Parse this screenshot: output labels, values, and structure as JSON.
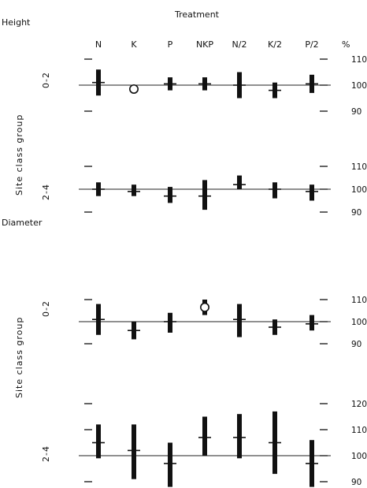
{
  "header": {
    "treatment_label": "Treatment",
    "percent_label": "%"
  },
  "treatments": [
    "N",
    "K",
    "P",
    "NKP",
    "N/2",
    "K/2",
    "P/2"
  ],
  "site_class_label": "Site class group",
  "chart_data": [
    {
      "type": "range-bar",
      "section": "Height",
      "site_class": "0-2",
      "ylim": [
        90,
        110
      ],
      "yticks": [
        "110",
        "100",
        "90"
      ],
      "series": [
        {
          "treatment": "N",
          "low": 96,
          "high": 106,
          "mean": 101,
          "marker": "bar"
        },
        {
          "treatment": "K",
          "low": 98,
          "high": 99,
          "mean": 98.5,
          "marker": "circle"
        },
        {
          "treatment": "P",
          "low": 98,
          "high": 103,
          "mean": 100.5,
          "marker": "bar"
        },
        {
          "treatment": "NKP",
          "low": 98,
          "high": 103,
          "mean": 100.5,
          "marker": "bar"
        },
        {
          "treatment": "N/2",
          "low": 95,
          "high": 105,
          "mean": 100,
          "marker": "bar"
        },
        {
          "treatment": "K/2",
          "low": 95,
          "high": 101,
          "mean": 98,
          "marker": "bar"
        },
        {
          "treatment": "P/2",
          "low": 97,
          "high": 104,
          "mean": 100.5,
          "marker": "bar"
        }
      ]
    },
    {
      "type": "range-bar",
      "section": "Height",
      "site_class": "2-4",
      "ylim": [
        90,
        110
      ],
      "yticks": [
        "110",
        "100",
        "90"
      ],
      "series": [
        {
          "treatment": "N",
          "low": 97,
          "high": 103,
          "mean": 100,
          "marker": "bar"
        },
        {
          "treatment": "K",
          "low": 97,
          "high": 102,
          "mean": 99,
          "marker": "bar"
        },
        {
          "treatment": "P",
          "low": 94,
          "high": 101,
          "mean": 97,
          "marker": "bar"
        },
        {
          "treatment": "NKP",
          "low": 91,
          "high": 104,
          "mean": 97,
          "marker": "bar"
        },
        {
          "treatment": "N/2",
          "low": 100,
          "high": 106,
          "mean": 102,
          "marker": "bar"
        },
        {
          "treatment": "K/2",
          "low": 96,
          "high": 103,
          "mean": 100,
          "marker": "bar"
        },
        {
          "treatment": "P/2",
          "low": 95,
          "high": 102,
          "mean": 99,
          "marker": "bar"
        }
      ]
    },
    {
      "type": "range-bar",
      "section": "Diameter",
      "site_class": "0-2",
      "ylim": [
        90,
        110
      ],
      "yticks": [
        "110",
        "100",
        "90"
      ],
      "series": [
        {
          "treatment": "N",
          "low": 94,
          "high": 108,
          "mean": 101,
          "marker": "bar"
        },
        {
          "treatment": "K",
          "low": 92,
          "high": 100,
          "mean": 96,
          "marker": "bar"
        },
        {
          "treatment": "P",
          "low": 95,
          "high": 104,
          "mean": 100,
          "marker": "bar"
        },
        {
          "treatment": "NKP",
          "low": 103,
          "high": 110,
          "mean": 106.5,
          "marker": "circle"
        },
        {
          "treatment": "N/2",
          "low": 93,
          "high": 108,
          "mean": 101,
          "marker": "bar"
        },
        {
          "treatment": "K/2",
          "low": 94,
          "high": 101,
          "mean": 97.5,
          "marker": "bar"
        },
        {
          "treatment": "P/2",
          "low": 96,
          "high": 103,
          "mean": 99,
          "marker": "bar"
        }
      ]
    },
    {
      "type": "range-bar",
      "section": "Diameter",
      "site_class": "2-4",
      "ylim": [
        90,
        120
      ],
      "yticks": [
        "120",
        "110",
        "100",
        "90"
      ],
      "series": [
        {
          "treatment": "N",
          "low": 99,
          "high": 112,
          "mean": 105,
          "marker": "bar"
        },
        {
          "treatment": "K",
          "low": 91,
          "high": 112,
          "mean": 102,
          "marker": "bar"
        },
        {
          "treatment": "P",
          "low": 88,
          "high": 105,
          "mean": 97,
          "marker": "bar"
        },
        {
          "treatment": "NKP",
          "low": 100,
          "high": 115,
          "mean": 107,
          "marker": "bar"
        },
        {
          "treatment": "N/2",
          "low": 99,
          "high": 116,
          "mean": 107,
          "marker": "bar"
        },
        {
          "treatment": "K/2",
          "low": 93,
          "high": 117,
          "mean": 105,
          "marker": "bar"
        },
        {
          "treatment": "P/2",
          "low": 88,
          "high": 106,
          "mean": 97,
          "marker": "bar"
        }
      ]
    }
  ]
}
